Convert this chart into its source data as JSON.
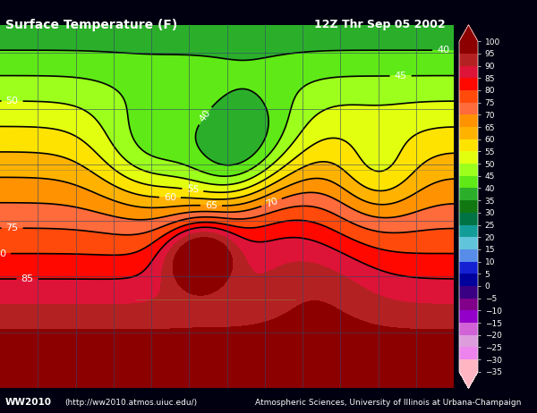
{
  "title_left": "Surface Temperature (F)",
  "title_right": "12Z Thr Sep 05 2002",
  "footer_left": "WW2010",
  "footer_url": "(http://ww2010.atmos.uiuc.edu/)",
  "footer_right": "Atmospheric Sciences, University of Illinois at Urbana-Champaign",
  "colorbar_levels": [
    100,
    95,
    90,
    85,
    80,
    75,
    70,
    65,
    60,
    55,
    50,
    45,
    40,
    35,
    30,
    25,
    20,
    15,
    10,
    5,
    0,
    -5,
    -10,
    -15,
    -20,
    -25,
    -30,
    -35
  ],
  "colorbar_colors": [
    "#8B0000",
    "#B22222",
    "#DC143C",
    "#FF0000",
    "#FF4500",
    "#FF6347",
    "#FF8C00",
    "#FFA500",
    "#FFD700",
    "#FFFF00",
    "#ADFF2F",
    "#7FFF00",
    "#32CD32",
    "#228B22",
    "#006400",
    "#008080",
    "#20B2AA",
    "#87CEEB",
    "#4169E1",
    "#0000CD",
    "#00008B",
    "#4B0082",
    "#8B008B",
    "#9400D3",
    "#DA70D6",
    "#DDA0DD",
    "#EE82EE",
    "#FFB6C1"
  ],
  "background_color": "#000010",
  "ocean_color": "#00007F",
  "contour_interval": 5,
  "lon_min": -170,
  "lon_max": -50,
  "lat_min": 10,
  "lat_max": 75
}
